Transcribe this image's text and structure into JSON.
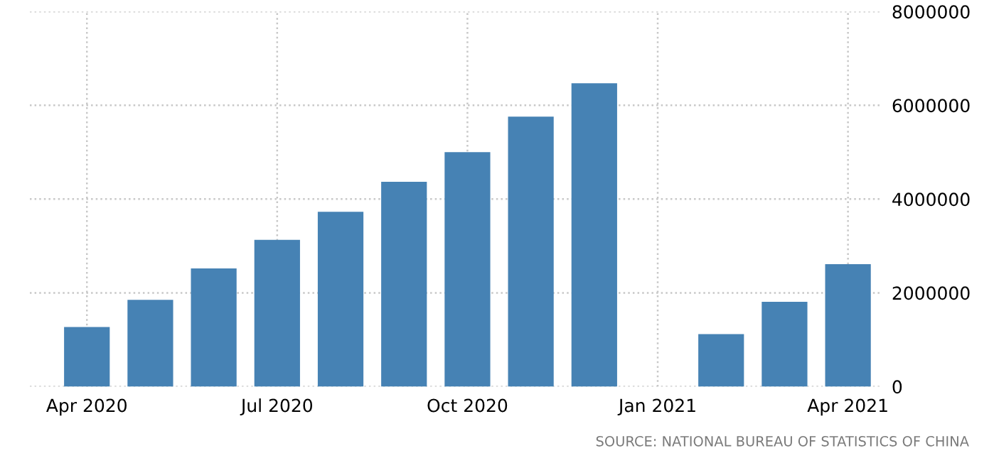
{
  "chart_data": {
    "type": "bar",
    "categories": [
      "Apr 2020",
      null,
      null,
      "Jul 2020",
      null,
      null,
      "Oct 2020",
      null,
      null,
      "Jan 2021",
      null,
      null,
      "Apr 2021"
    ],
    "values": [
      1270000,
      1850000,
      2520000,
      3130000,
      3730000,
      4370000,
      5000000,
      5760000,
      6470000,
      null,
      1120000,
      1810000,
      2610000
    ],
    "color": "#4682b4",
    "ylim": [
      0,
      8000000
    ],
    "yticks": [
      0,
      2000000,
      4000000,
      6000000,
      8000000
    ],
    "grid": true,
    "annotations": [
      "SOURCE: NATIONAL BUREAU OF STATISTICS OF CHINA"
    ]
  }
}
